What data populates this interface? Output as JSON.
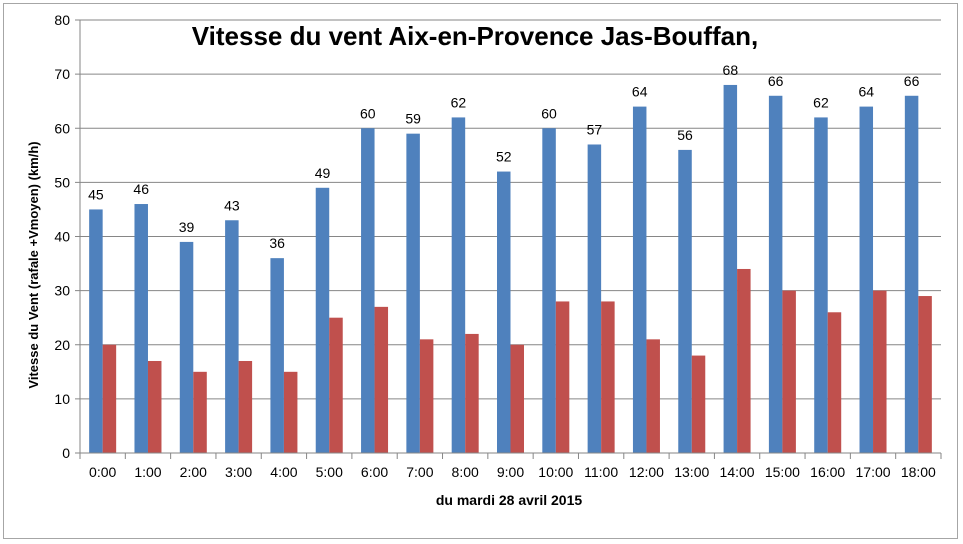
{
  "chart_data": {
    "type": "bar",
    "title": "Vitesse du vent Aix-en-Provence Jas-Bouffan,",
    "xlabel": "du mardi 28  avril 2015",
    "ylabel": "Vitesse du Vent (rafale +Vmoyen) (km/h)",
    "ylim": [
      0,
      80
    ],
    "yticks": [
      0,
      10,
      20,
      30,
      40,
      50,
      60,
      70,
      80
    ],
    "grid": true,
    "categories": [
      "0:00",
      "1:00",
      "2:00",
      "3:00",
      "4:00",
      "5:00",
      "6:00",
      "7:00",
      "8:00",
      "9:00",
      "10:00",
      "11:00",
      "12:00",
      "13:00",
      "14:00",
      "15:00",
      "16:00",
      "17:00",
      "18:00"
    ],
    "series": [
      {
        "color": "#4f81bd",
        "values": [
          45,
          46,
          39,
          43,
          36,
          49,
          60,
          59,
          62,
          52,
          60,
          57,
          64,
          56,
          68,
          66,
          62,
          64,
          66
        ],
        "show_labels": true
      },
      {
        "color": "#c0504d",
        "values": [
          20,
          17,
          15,
          17,
          15,
          25,
          27,
          21,
          22,
          20,
          28,
          28,
          21,
          18,
          34,
          30,
          26,
          30,
          29
        ],
        "show_labels": false
      }
    ]
  }
}
